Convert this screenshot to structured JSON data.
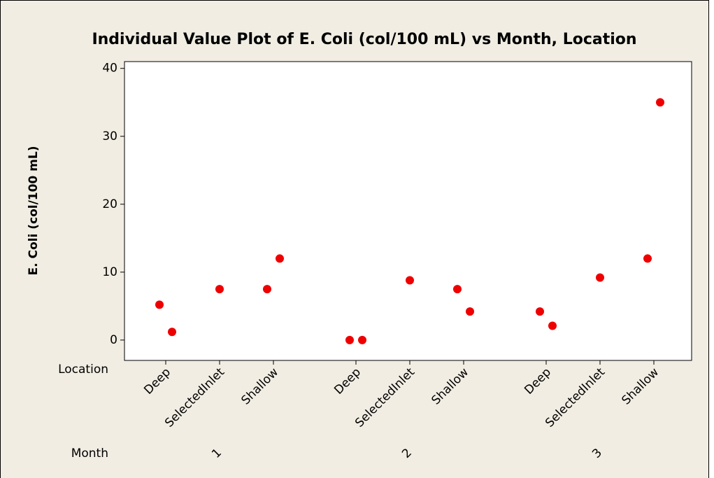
{
  "chart_data": {
    "type": "individual_value",
    "title": "Individual Value Plot of E. Coli (col/100 mL) vs Month, Location",
    "y_label": "E. Coli (col/100 mL)",
    "x_row_labels": [
      "Location",
      "Month"
    ],
    "color": "#ee0000",
    "ylim": [
      -3,
      41
    ],
    "yticks": [
      0,
      10,
      20,
      30,
      40
    ],
    "groups": [
      {
        "month": "1",
        "locations": [
          {
            "name": "Deep",
            "values": [
              5.2,
              1.2
            ]
          },
          {
            "name": "SelectedInlet",
            "values": [
              7.5
            ]
          },
          {
            "name": "Shallow",
            "values": [
              7.5,
              12
            ]
          }
        ]
      },
      {
        "month": "2",
        "locations": [
          {
            "name": "Deep",
            "values": [
              0,
              0
            ]
          },
          {
            "name": "SelectedInlet",
            "values": [
              8.8
            ]
          },
          {
            "name": "Shallow",
            "values": [
              7.5,
              4.2
            ]
          }
        ]
      },
      {
        "month": "3",
        "locations": [
          {
            "name": "Deep",
            "values": [
              4.2,
              2.1
            ]
          },
          {
            "name": "SelectedInlet",
            "values": [
              9.2
            ]
          },
          {
            "name": "Shallow",
            "values": [
              12,
              35
            ]
          }
        ]
      }
    ]
  }
}
